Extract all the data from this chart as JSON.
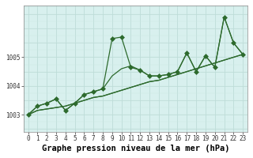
{
  "title": "Graphe pression niveau de la mer (hPa)",
  "bg_outer": "#ffffff",
  "bg_color": "#d8f0ee",
  "line_color": "#2d6a2d",
  "grid_major_color": "#b8d8d4",
  "grid_minor_color": "#cce8e4",
  "xlim": [
    -0.5,
    23.5
  ],
  "ylim": [
    1002.4,
    1006.8
  ],
  "yticks": [
    1003,
    1004,
    1005
  ],
  "xticks": [
    0,
    1,
    2,
    3,
    4,
    5,
    6,
    7,
    8,
    9,
    10,
    11,
    12,
    13,
    14,
    15,
    16,
    17,
    18,
    19,
    20,
    21,
    22,
    23
  ],
  "series": [
    [
      1003.0,
      1003.3,
      1003.4,
      1003.55,
      1003.15,
      1003.4,
      1003.7,
      1003.8,
      1003.9,
      1005.65,
      1005.7,
      1004.65,
      1004.55,
      1004.35,
      1004.35,
      1004.4,
      1004.5,
      1005.15,
      1004.5,
      1005.05,
      1004.65,
      1006.4,
      1005.5,
      1005.1
    ],
    [
      1003.0,
      1003.3,
      1003.4,
      1003.55,
      1003.15,
      1003.4,
      1003.7,
      1003.8,
      1003.9,
      1004.35,
      1004.6,
      1004.7,
      1004.55,
      1004.35,
      1004.35,
      1004.4,
      1004.5,
      1005.15,
      1004.5,
      1005.05,
      1004.65,
      1006.4,
      1005.5,
      1005.1
    ],
    [
      1003.0,
      1003.15,
      1003.2,
      1003.25,
      1003.3,
      1003.4,
      1003.5,
      1003.6,
      1003.65,
      1003.75,
      1003.85,
      1003.95,
      1004.05,
      1004.15,
      1004.2,
      1004.3,
      1004.4,
      1004.5,
      1004.6,
      1004.7,
      1004.8,
      1004.9,
      1005.0,
      1005.1
    ],
    [
      1003.0,
      1003.15,
      1003.2,
      1003.25,
      1003.3,
      1003.4,
      1003.5,
      1003.6,
      1003.65,
      1003.75,
      1003.85,
      1003.95,
      1004.05,
      1004.15,
      1004.2,
      1004.3,
      1004.4,
      1004.5,
      1004.6,
      1004.7,
      1004.8,
      1004.9,
      1005.0,
      1005.1
    ]
  ],
  "has_markers": [
    true,
    false,
    false,
    false
  ],
  "marker": "D",
  "markersize": 3,
  "linewidth": 0.9,
  "title_fontsize": 7.5,
  "tick_fontsize": 5.5,
  "figsize": [
    3.2,
    2.0
  ],
  "dpi": 100
}
